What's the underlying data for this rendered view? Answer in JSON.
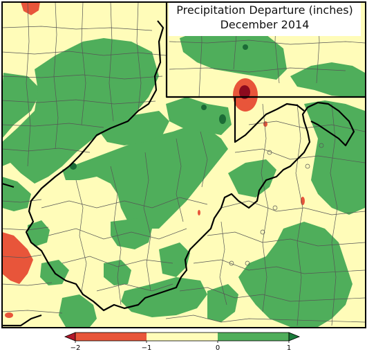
{
  "map": {
    "title_line1": "Precipitation Departure (inches)",
    "title_line2": "December 2014"
  },
  "colorbar": {
    "ticks": [
      {
        "value": -2,
        "label": "−2"
      },
      {
        "value": -1,
        "label": "−1"
      },
      {
        "value": 0,
        "label": "0"
      },
      {
        "value": 1,
        "label": "1"
      }
    ],
    "bins": [
      {
        "from": -2,
        "to": -1,
        "color": "#e8553a"
      },
      {
        "from": -1,
        "to": 0,
        "color": "#fffcb9"
      },
      {
        "from": 0,
        "to": 1,
        "color": "#4fae5b"
      }
    ],
    "under_color": "#b2182b",
    "over_color": "#1a7a3a"
  },
  "colors": {
    "near_normal": "#fffcb9",
    "above_normal": "#4fae5b",
    "well_above_normal": "#1b6b36",
    "below_normal": "#e8553a",
    "well_below_normal": "#8c0a1e",
    "state_border": "#000000",
    "county_line": "#555555"
  }
}
